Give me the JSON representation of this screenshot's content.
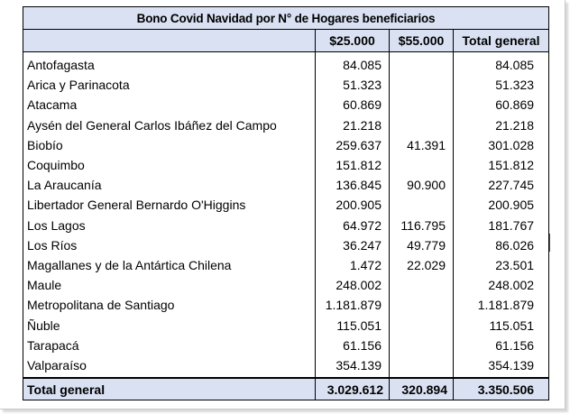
{
  "table": {
    "title": "Bono Covid Navidad por N° de Hogares beneficiarios",
    "headers": {
      "region": "",
      "c25": "$25.000",
      "c55": "$55.000",
      "total": "Total general"
    },
    "rows": [
      {
        "region": "Antofagasta",
        "c25": "84.085",
        "c55": "",
        "total": "84.085"
      },
      {
        "region": "Arica y Parinacota",
        "c25": "51.323",
        "c55": "",
        "total": "51.323"
      },
      {
        "region": "Atacama",
        "c25": "60.869",
        "c55": "",
        "total": "60.869"
      },
      {
        "region": "Aysén del General Carlos Ibáñez del Campo",
        "c25": "21.218",
        "c55": "",
        "total": "21.218"
      },
      {
        "region": "Biobío",
        "c25": "259.637",
        "c55": "41.391",
        "total": "301.028"
      },
      {
        "region": "Coquimbo",
        "c25": "151.812",
        "c55": "",
        "total": "151.812"
      },
      {
        "region": "La Araucanía",
        "c25": "136.845",
        "c55": "90.900",
        "total": "227.745"
      },
      {
        "region": "Libertador General Bernardo O'Higgins",
        "c25": "200.905",
        "c55": "",
        "total": "200.905"
      },
      {
        "region": "Los Lagos",
        "c25": "64.972",
        "c55": "116.795",
        "total": "181.767"
      },
      {
        "region": "Los Ríos",
        "c25": "36.247",
        "c55": "49.779",
        "total": "86.026"
      },
      {
        "region": "Magallanes y de la Antártica Chilena",
        "c25": "1.472",
        "c55": "22.029",
        "total": "23.501"
      },
      {
        "region": "Maule",
        "c25": "248.002",
        "c55": "",
        "total": "248.002"
      },
      {
        "region": "Metropolitana de Santiago",
        "c25": "1.181.879",
        "c55": "",
        "total": "1.181.879"
      },
      {
        "region": "Ñuble",
        "c25": "115.051",
        "c55": "",
        "total": "115.051"
      },
      {
        "region": "Tarapacá",
        "c25": "61.156",
        "c55": "",
        "total": "61.156"
      },
      {
        "region": "Valparaíso",
        "c25": "354.139",
        "c55": "",
        "total": "354.139"
      }
    ],
    "total_row": {
      "region": "Total general",
      "c25": "3.029.612",
      "c55": "320.894",
      "total": "3.350.506"
    }
  },
  "colors": {
    "header_fill": "#d9e1f2",
    "border": "#000000"
  }
}
